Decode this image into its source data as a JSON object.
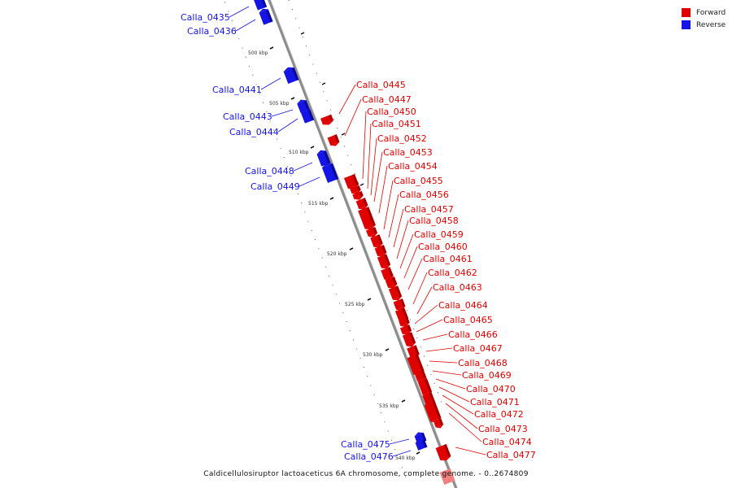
{
  "colors": {
    "forward": "#e00000",
    "reverse": "#1414e6",
    "forward_light": "#f08080",
    "backbone": "#8c8c8c"
  },
  "legend": {
    "forward": "Forward",
    "reverse": "Reverse"
  },
  "caption": "Caldicellulosiruptor lactoaceticus 6A chromosome, complete genome. - 0..2674809",
  "scale": {
    "unit": "kbp",
    "major_ticks": [
      "500 kbp",
      "505 kbp",
      "510 kbp",
      "515 kbp",
      "520 kbp",
      "525 kbp",
      "530 kbp",
      "535 kbp",
      "540 kbp"
    ]
  },
  "genes": [
    {
      "label": "Calla_0435",
      "strand": "reverse"
    },
    {
      "label": "Calla_0436",
      "strand": "reverse"
    },
    {
      "label": "Calla_0441",
      "strand": "reverse"
    },
    {
      "label": "Calla_0443",
      "strand": "reverse"
    },
    {
      "label": "Calla_0444",
      "strand": "reverse"
    },
    {
      "label": "Calla_0448",
      "strand": "reverse"
    },
    {
      "label": "Calla_0449",
      "strand": "reverse"
    },
    {
      "label": "Calla_0475",
      "strand": "reverse"
    },
    {
      "label": "Calla_0476",
      "strand": "reverse"
    },
    {
      "label": "Calla_0445",
      "strand": "forward"
    },
    {
      "label": "Calla_0447",
      "strand": "forward"
    },
    {
      "label": "Calla_0450",
      "strand": "forward"
    },
    {
      "label": "Calla_0451",
      "strand": "forward"
    },
    {
      "label": "Calla_0452",
      "strand": "forward"
    },
    {
      "label": "Calla_0453",
      "strand": "forward"
    },
    {
      "label": "Calla_0454",
      "strand": "forward"
    },
    {
      "label": "Calla_0455",
      "strand": "forward"
    },
    {
      "label": "Calla_0456",
      "strand": "forward"
    },
    {
      "label": "Calla_0457",
      "strand": "forward"
    },
    {
      "label": "Calla_0458",
      "strand": "forward"
    },
    {
      "label": "Calla_0459",
      "strand": "forward"
    },
    {
      "label": "Calla_0460",
      "strand": "forward"
    },
    {
      "label": "Calla_0461",
      "strand": "forward"
    },
    {
      "label": "Calla_0462",
      "strand": "forward"
    },
    {
      "label": "Calla_0463",
      "strand": "forward"
    },
    {
      "label": "Calla_0464",
      "strand": "forward"
    },
    {
      "label": "Calla_0465",
      "strand": "forward"
    },
    {
      "label": "Calla_0466",
      "strand": "forward"
    },
    {
      "label": "Calla_0467",
      "strand": "forward"
    },
    {
      "label": "Calla_0468",
      "strand": "forward"
    },
    {
      "label": "Calla_0469",
      "strand": "forward"
    },
    {
      "label": "Calla_0470",
      "strand": "forward"
    },
    {
      "label": "Calla_0471",
      "strand": "forward"
    },
    {
      "label": "Calla_0472",
      "strand": "forward"
    },
    {
      "label": "Calla_0473",
      "strand": "forward"
    },
    {
      "label": "Calla_0474",
      "strand": "forward"
    },
    {
      "label": "Calla_0477",
      "strand": "forward"
    }
  ]
}
